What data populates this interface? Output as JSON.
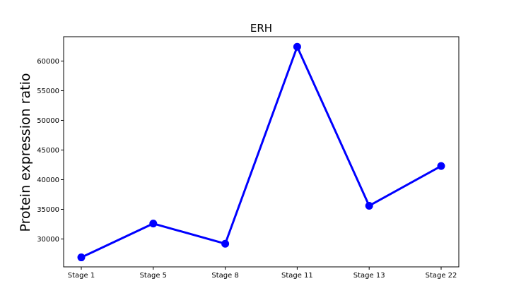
{
  "chart_data": {
    "type": "line",
    "title": "ERH",
    "xlabel": "",
    "ylabel": "Protein expression ratio",
    "categories": [
      "Stage 1",
      "Stage 5",
      "Stage 8",
      "Stage 11",
      "Stage 13",
      "Stage 22"
    ],
    "series": [
      {
        "values": [
          26900,
          32600,
          29200,
          62400,
          35600,
          42300
        ]
      }
    ],
    "ylim": [
      25300,
      64100
    ],
    "yticks": [
      30000,
      35000,
      40000,
      45000,
      50000,
      55000,
      60000
    ],
    "ytick_labels": [
      "30000",
      "35000",
      "40000",
      "45000",
      "50000",
      "55000",
      "60000"
    ],
    "grid": false,
    "legend": "none",
    "colors": {
      "line": "#0000ff",
      "marker": "#0000ff",
      "axes": "#000000",
      "background": "#ffffff"
    }
  }
}
